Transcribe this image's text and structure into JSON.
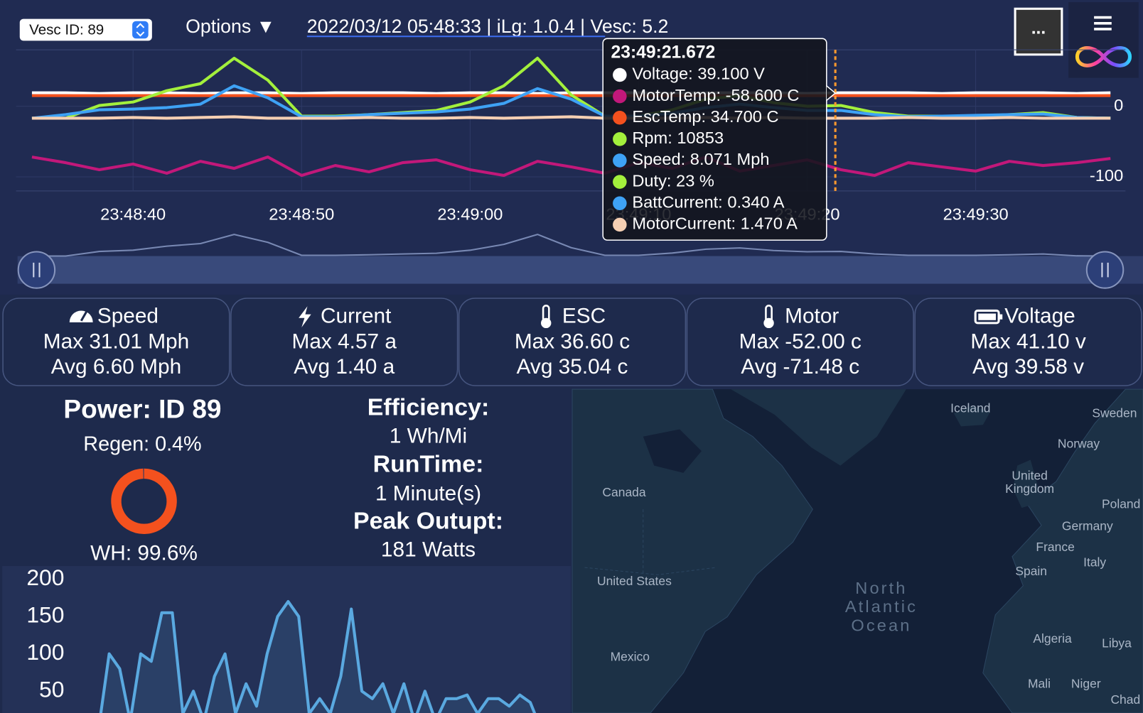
{
  "toolbar": {
    "vesc_select": "Vesc ID: 89",
    "options": "Options ▼",
    "info": "2022/03/12 05:48:33 | iLg: 1.0.4 | Vesc: 5.2",
    "more": "..."
  },
  "chart_data": {
    "type": "line",
    "x": [
      "23:48:34",
      "23:48:36",
      "23:48:38",
      "23:48:40",
      "23:48:42",
      "23:48:44",
      "23:48:46",
      "23:48:48",
      "23:48:50",
      "23:48:52",
      "23:48:54",
      "23:48:56",
      "23:48:58",
      "23:49:00",
      "23:49:02",
      "23:49:04",
      "23:49:06",
      "23:49:08",
      "23:49:10",
      "23:49:12",
      "23:49:14",
      "23:49:16",
      "23:49:18",
      "23:49:20",
      "23:49:22",
      "23:49:24",
      "23:49:26",
      "23:49:28",
      "23:49:30",
      "23:49:32",
      "23:49:34",
      "23:49:36",
      "23:49:38"
    ],
    "xlim": [
      "23:48:33",
      "23:49:39"
    ],
    "xticks": [
      "23:48:40",
      "23:48:50",
      "23:49:00",
      "23:49:10",
      "23:49:20",
      "23:49:30"
    ],
    "ylim": [
      -120,
      80
    ],
    "yticks": [
      -100,
      0
    ],
    "grid": true,
    "series": [
      {
        "color": "#ffffff",
        "values": [
          19,
          19,
          18,
          19,
          19,
          18,
          19,
          19,
          18,
          19,
          19,
          19,
          18,
          19,
          19,
          18,
          19,
          19,
          19,
          18,
          19,
          19,
          19,
          18,
          19,
          19,
          19,
          18,
          19,
          19,
          19,
          18,
          19
        ]
      },
      {
        "color": "#c2187a",
        "values": [
          -72,
          -80,
          -90,
          -82,
          -95,
          -78,
          -88,
          -72,
          -98,
          -84,
          -93,
          -80,
          -76,
          -90,
          -98,
          -78,
          -86,
          -95,
          -80,
          -88,
          -72,
          -92,
          -84,
          -76,
          -90,
          -98,
          -80,
          -86,
          -92,
          -78,
          -84,
          -80,
          -74
        ]
      },
      {
        "color": "#f4511e",
        "values": [
          15,
          15,
          15,
          15,
          15,
          15,
          15,
          15,
          15,
          15,
          15,
          15,
          15,
          15,
          15,
          15,
          15,
          15,
          15,
          15,
          15,
          15,
          15,
          15,
          15,
          15,
          15,
          15,
          15,
          15,
          15,
          15,
          15
        ]
      },
      {
        "color": "#a3f03c",
        "values": [
          -17,
          -17,
          1,
          6,
          22,
          32,
          68,
          37,
          -14,
          -14,
          -12,
          -9,
          -6,
          6,
          29,
          68,
          16,
          -14,
          -14,
          -5,
          10,
          15,
          5,
          0,
          1,
          -9,
          -14,
          -14,
          -14,
          -12,
          -9,
          -16,
          -17
        ]
      },
      {
        "color": "#3ea2f5",
        "values": [
          -17,
          -12,
          -5,
          -4,
          -2,
          3,
          29,
          12,
          -15,
          -15,
          -12,
          -10,
          -8,
          -4,
          4,
          25,
          10,
          -14,
          -14,
          -10,
          -2,
          3,
          -2,
          -6,
          -6,
          -12,
          -15,
          -14,
          -13,
          -12,
          -11,
          -16,
          -17
        ]
      },
      {
        "color": "#f5cfb3",
        "values": [
          -17,
          -17,
          -17,
          -16,
          -17,
          -16,
          -15,
          -17,
          -17,
          -17,
          -16,
          -17,
          -17,
          -16,
          -17,
          -16,
          -15,
          -17,
          -17,
          -17,
          -16,
          -17,
          -16,
          -17,
          -17,
          -17,
          -16,
          -17,
          -17,
          -16,
          -17,
          -17,
          -17
        ]
      }
    ],
    "tooltip": {
      "title": "23:49:21.672",
      "items": [
        {
          "text": "Voltage: 39.100 V",
          "color": "#ffffff"
        },
        {
          "text": "MotorTemp: -58.600 C",
          "color": "#c2187a"
        },
        {
          "text": "EscTemp: 34.700 C",
          "color": "#f4511e"
        },
        {
          "text": "Rpm: 10853",
          "color": "#a3f03c"
        },
        {
          "text": "Speed: 8.071 Mph",
          "color": "#3ea2f5"
        },
        {
          "text": "Duty: 23 %",
          "color": "#a3f03c"
        },
        {
          "text": "BattCurrent: 0.340 A",
          "color": "#3ea2f5"
        },
        {
          "text": "MotorCurrent: 1.470 A",
          "color": "#f5cfb3"
        }
      ]
    }
  },
  "stats": [
    {
      "title": "Speed",
      "max": "Max 31.01 Mph",
      "avg": "Avg 6.60 Mph"
    },
    {
      "title": "Current",
      "max": "Max 4.57 a",
      "avg": "Avg 1.40 a"
    },
    {
      "title": "ESC",
      "max": "Max 36.60 c",
      "avg": "Avg 35.04 c"
    },
    {
      "title": "Motor",
      "max": "Max -52.00 c",
      "avg": "Avg -71.48 c"
    },
    {
      "title": "Voltage",
      "max": "Max 41.10 v",
      "avg": "Avg 39.58 v"
    }
  ],
  "power": {
    "title": "Power: ID 89",
    "regen": "Regen: 0.4%",
    "wh": "WH: 99.6%",
    "donut": {
      "type": "pie",
      "values": [
        99.6,
        0.4
      ],
      "colors": [
        "#f4511e",
        "#2b3966"
      ]
    }
  },
  "efficiency": {
    "label": "Efficiency:",
    "value": "1 Wh/Mi",
    "runtime_label": "RunTime:",
    "runtime": "1 Minute(s)",
    "peak_label": "Peak Outupt:",
    "peak": "181 Watts"
  },
  "power_chart": {
    "type": "line",
    "ylim": [
      0,
      200
    ],
    "yticks": [
      50,
      100,
      150,
      200
    ],
    "color": "#5aa9e0",
    "values": [
      0,
      100,
      80,
      10,
      100,
      90,
      155,
      155,
      20,
      50,
      10,
      70,
      100,
      20,
      60,
      30,
      100,
      150,
      170,
      150,
      20,
      40,
      20,
      70,
      160,
      50,
      40,
      60,
      20,
      60,
      10,
      50,
      10,
      40,
      40,
      45,
      20,
      40,
      40,
      30,
      45,
      35,
      0
    ]
  },
  "map": {
    "labels": [
      [
        "Iceland"
      ],
      [
        "Sweden"
      ],
      [
        "Norway"
      ],
      [
        "United",
        "Kingdom"
      ],
      [
        "Poland"
      ],
      [
        "Germany"
      ],
      [
        "France"
      ],
      [
        "Italy"
      ],
      [
        "Spain"
      ],
      [
        "Canada"
      ],
      [
        "United States"
      ],
      [
        "North",
        "Atlantic",
        "Ocean"
      ],
      [
        "Mexico"
      ],
      [
        "Algeria"
      ],
      [
        "Libya"
      ],
      [
        "Mali"
      ],
      [
        "Niger"
      ],
      [
        "Chad"
      ]
    ]
  }
}
